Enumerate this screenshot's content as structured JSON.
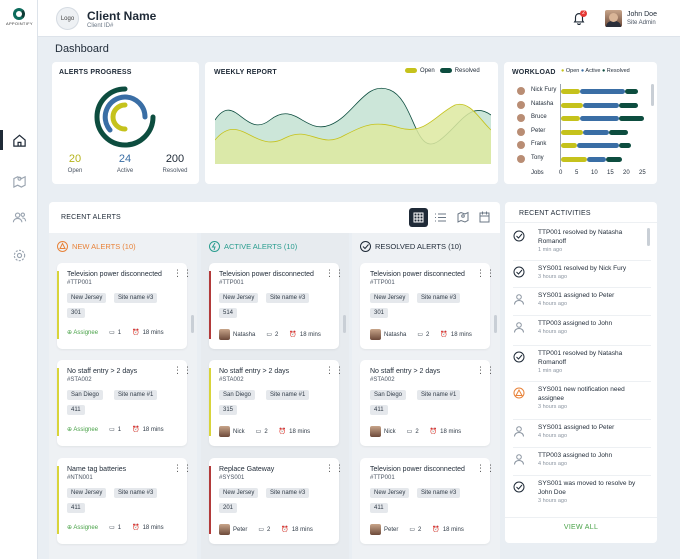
{
  "brand": {
    "name": "APPOINTIFY"
  },
  "header": {
    "logo_label": "Logo",
    "client_name": "Client Name",
    "client_id": "Client ID#",
    "notification_count": "2",
    "user_name": "John Doe",
    "user_role": "Site Admin"
  },
  "page_title": "Dashboard",
  "alerts_progress": {
    "title": "ALERTS PROGRESS",
    "open": {
      "value": "20",
      "label": "Open"
    },
    "active": {
      "value": "24",
      "label": "Active"
    },
    "resolved": {
      "value": "200",
      "label": "Resolved"
    },
    "colors": {
      "open": "#c5c21c",
      "active": "#3a6ea5",
      "resolved": "#0d4d3f"
    }
  },
  "weekly_report": {
    "title": "WEEKLY REPORT",
    "legend": [
      {
        "name": "Open",
        "color": "#c5c21c"
      },
      {
        "name": "Resolved",
        "color": "#0d4d3f"
      }
    ]
  },
  "workload": {
    "title": "WORKLOAD",
    "legend": [
      {
        "name": "Open",
        "color": "#c5c21c"
      },
      {
        "name": "Active",
        "color": "#3a6ea5"
      },
      {
        "name": "Resolved",
        "color": "#0d4d3f"
      }
    ],
    "x_label": "Jobs",
    "ticks": [
      "0",
      "5",
      "10",
      "15",
      "20",
      "25"
    ],
    "people": [
      {
        "name": "Nick Fury",
        "open": 6,
        "active": 14,
        "resolved": 4
      },
      {
        "name": "Natasha",
        "open": 7,
        "active": 11,
        "resolved": 6
      },
      {
        "name": "Bruce",
        "open": 6,
        "active": 12,
        "resolved": 8
      },
      {
        "name": "Peter",
        "open": 7,
        "active": 8,
        "resolved": 6
      },
      {
        "name": "Frank",
        "open": 5,
        "active": 13,
        "resolved": 4
      },
      {
        "name": "Tony",
        "open": 8,
        "active": 6,
        "resolved": 5
      }
    ]
  },
  "recent_alerts": {
    "title": "RECENT ALERTS",
    "columns": [
      {
        "title": "NEW ALERTS (10)",
        "color": "#e8833a",
        "cards": [
          {
            "title": "Television power disconnected",
            "code": "#TTP001",
            "region": "New Jersey",
            "site": "Site name #3",
            "num": "301",
            "assignee": "Assignee",
            "comments": "1",
            "time": "18 mins"
          },
          {
            "title": "No staff entry > 2 days",
            "code": "#STA002",
            "region": "San Diego",
            "site": "Site name #1",
            "num": "411",
            "assignee": "Assignee",
            "comments": "1",
            "time": "18 mins"
          },
          {
            "title": "Name tag batteries",
            "code": "#NTN001",
            "region": "New Jersey",
            "site": "Site name #3",
            "num": "411",
            "assignee": "Assignee",
            "comments": "1",
            "time": "18 mins"
          }
        ]
      },
      {
        "title": "ACTIVE ALERTS (10)",
        "color": "#2a9d8f",
        "cards": [
          {
            "title": "Television power disconnected",
            "code": "#TTP001",
            "region": "New Jersey",
            "site": "Site name #3",
            "num": "514",
            "assignee": "Natasha",
            "comments": "2",
            "time": "18 mins"
          },
          {
            "title": "No staff entry > 2 days",
            "code": "#STA002",
            "region": "San Diego",
            "site": "Site name #1",
            "num": "315",
            "assignee": "Nick",
            "comments": "2",
            "time": "18 mins"
          },
          {
            "title": "Replace Gateway",
            "code": "#SYS001",
            "region": "New Jersey",
            "site": "Site name #3",
            "num": "201",
            "assignee": "Peter",
            "comments": "2",
            "time": "18 mins"
          }
        ]
      },
      {
        "title": "RESOLVED ALERTS (10)",
        "color": "#1f2a37",
        "cards": [
          {
            "title": "Television power disconnected",
            "code": "#TTP001",
            "region": "New Jersey",
            "site": "Site name #3",
            "num": "301",
            "assignee": "Natasha",
            "comments": "2",
            "time": "18 mins"
          },
          {
            "title": "No staff entry > 2 days",
            "code": "#STA002",
            "region": "San Diego",
            "site": "Site name #1",
            "num": "411",
            "assignee": "Nick",
            "comments": "2",
            "time": "18 mins"
          },
          {
            "title": "Television power disconnected",
            "code": "#TTP001",
            "region": "New Jersey",
            "site": "Site name #3",
            "num": "411",
            "assignee": "Peter",
            "comments": "2",
            "time": "18 mins"
          }
        ]
      }
    ]
  },
  "recent_activities": {
    "title": "RECENT ACTIVITIES",
    "view_all": "VIEW ALL",
    "items": [
      {
        "icon": "check-circle-icon",
        "text": "TTP001 resolved by Natasha Romanoff",
        "time": "1 min ago"
      },
      {
        "icon": "check-circle-icon",
        "text": "SYS001 resolved by Nick Fury",
        "time": "3 hours ago"
      },
      {
        "icon": "user-icon",
        "text": "SYS001 assigned to Peter",
        "time": "4 hours ago"
      },
      {
        "icon": "user-icon",
        "text": "TTP003 assigned to John",
        "time": "4 hours ago"
      },
      {
        "icon": "check-circle-icon",
        "text": "TTP001 resolved by Natasha Romanoff",
        "time": "1 min ago"
      },
      {
        "icon": "warning-icon",
        "text": "SYS001 new notification need assignee",
        "time": "3 hours ago"
      },
      {
        "icon": "user-icon",
        "text": "SYS001 assigned to Peter",
        "time": "4 hours ago"
      },
      {
        "icon": "user-icon",
        "text": "TTP003 assigned to John",
        "time": "4 hours ago"
      },
      {
        "icon": "check-circle-icon",
        "text": "SYS001 was moved to resolve by John Doe",
        "time": "3 hours ago"
      }
    ]
  }
}
